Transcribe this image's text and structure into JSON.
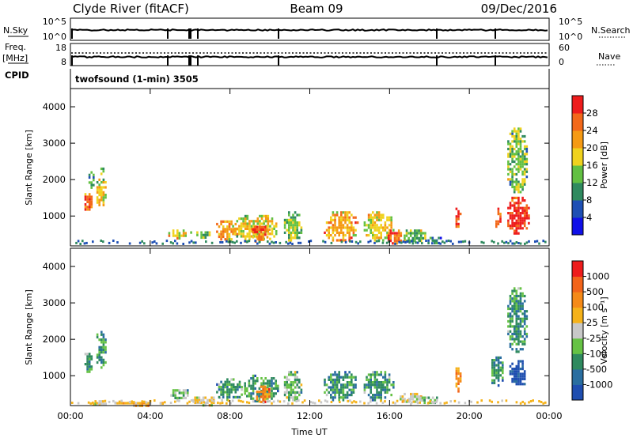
{
  "header": {
    "station": "Clyde River (fitACF)",
    "beam": "Beam 09",
    "date": "09/Dec/2016"
  },
  "panel_labels": {
    "nsky": "N.Sky",
    "nsky_ticks": [
      "10^5",
      "10^0"
    ],
    "nsearch": "N.Search",
    "nsearch_ticks": [
      "10^5",
      "10^0"
    ],
    "freq_line1": "Freq.",
    "freq_line2": "[MHz]",
    "freq_ticks": [
      "18",
      "8"
    ],
    "nave": "Nave",
    "nave_ticks": [
      "60",
      "0"
    ],
    "cpid": "CPID",
    "program": "twofsound (1-min) 3505"
  },
  "chart_data": [
    {
      "type": "heatmap",
      "name": "power",
      "ylabel": "Slant Range [km]",
      "xlabel": "",
      "xlim": [
        0,
        24
      ],
      "ylim": [
        180,
        4500
      ],
      "yticks": [
        "1000",
        "2000",
        "3000",
        "4000"
      ],
      "xticks": [
        "00:00",
        "04:00",
        "08:00",
        "12:00",
        "16:00",
        "20:00",
        "00:00"
      ],
      "colorbar": {
        "label": "Power [dB]",
        "ticks": [
          "4",
          "8",
          "12",
          "16",
          "20",
          "24",
          "28"
        ],
        "colors": [
          "#1010e8",
          "#1e4fb4",
          "#2f8a5f",
          "#62c042",
          "#f0d21e",
          "#f59a14",
          "#f2681a",
          "#ee1c1c"
        ]
      },
      "blobs": [
        {
          "t0": 0.6,
          "t1": 1.1,
          "r0": 1100,
          "r1": 1700,
          "level": 6
        },
        {
          "t0": 0.8,
          "t1": 1.2,
          "r0": 1800,
          "r1": 2300,
          "level": 2
        },
        {
          "t0": 1.2,
          "t1": 1.8,
          "r0": 1200,
          "r1": 2100,
          "level": 4
        },
        {
          "t0": 1.4,
          "t1": 1.7,
          "r0": 2100,
          "r1": 2400,
          "level": 3
        },
        {
          "t0": 4.8,
          "t1": 5.8,
          "r0": 400,
          "r1": 700,
          "level": 4
        },
        {
          "t0": 5.9,
          "t1": 7.0,
          "r0": 400,
          "r1": 650,
          "level": 3
        },
        {
          "t0": 7.2,
          "t1": 8.4,
          "r0": 350,
          "r1": 950,
          "level": 5
        },
        {
          "t0": 8.0,
          "t1": 10.4,
          "r0": 300,
          "r1": 1100,
          "level": 4
        },
        {
          "t0": 9.0,
          "t1": 10.0,
          "r0": 350,
          "r1": 800,
          "level": 6
        },
        {
          "t0": 10.6,
          "t1": 11.6,
          "r0": 300,
          "r1": 1200,
          "level": 3
        },
        {
          "t0": 12.6,
          "t1": 14.4,
          "r0": 300,
          "r1": 1200,
          "level": 5
        },
        {
          "t0": 14.6,
          "t1": 16.2,
          "r0": 300,
          "r1": 1200,
          "level": 4
        },
        {
          "t0": 15.8,
          "t1": 16.6,
          "r0": 250,
          "r1": 700,
          "level": 6
        },
        {
          "t0": 16.6,
          "t1": 17.8,
          "r0": 250,
          "r1": 700,
          "level": 3
        },
        {
          "t0": 17.8,
          "t1": 18.6,
          "r0": 250,
          "r1": 500,
          "level": 2
        },
        {
          "t0": 19.2,
          "t1": 19.6,
          "r0": 700,
          "r1": 1300,
          "level": 7
        },
        {
          "t0": 21.2,
          "t1": 21.6,
          "r0": 700,
          "r1": 1300,
          "level": 6
        },
        {
          "t0": 21.8,
          "t1": 23.0,
          "r0": 500,
          "r1": 1600,
          "level": 7
        },
        {
          "t0": 21.8,
          "t1": 22.9,
          "r0": 1600,
          "r1": 3500,
          "level": 3
        }
      ]
    },
    {
      "type": "heatmap",
      "name": "velocity",
      "ylabel": "Slant Range [km]",
      "xlabel": "Time UT",
      "xlim": [
        0,
        24
      ],
      "ylim": [
        180,
        4500
      ],
      "yticks": [
        "1000",
        "2000",
        "3000",
        "4000"
      ],
      "xticks": [
        "00:00",
        "04:00",
        "08:00",
        "12:00",
        "16:00",
        "20:00",
        "00:00"
      ],
      "colorbar": {
        "label": "Velocity [m s⁻¹]",
        "ticks": [
          "1000",
          "500",
          "100",
          "25",
          "-25",
          "-100",
          "-500",
          "-1000"
        ],
        "colors": [
          "#1f4eb0",
          "#2a6ea0",
          "#2f8a5f",
          "#66c245",
          "#c8c8c8",
          "#f5b21a",
          "#f58a18",
          "#f2641a",
          "#ee1c1c"
        ]
      },
      "blobs": [
        {
          "t0": 0.6,
          "t1": 1.1,
          "r0": 1100,
          "r1": 1700,
          "level": 2
        },
        {
          "t0": 1.2,
          "t1": 1.8,
          "r0": 1200,
          "r1": 2300,
          "level": 2
        },
        {
          "t0": 1.0,
          "t1": 1.8,
          "r0": 200,
          "r1": 400,
          "level": 4
        },
        {
          "t0": 2.0,
          "t1": 4.6,
          "r0": 200,
          "r1": 350,
          "level": 5
        },
        {
          "t0": 4.8,
          "t1": 6.0,
          "r0": 300,
          "r1": 700,
          "level": 3
        },
        {
          "t0": 6.0,
          "t1": 7.6,
          "r0": 200,
          "r1": 500,
          "level": 4
        },
        {
          "t0": 7.2,
          "t1": 8.6,
          "r0": 300,
          "r1": 1000,
          "level": 2
        },
        {
          "t0": 8.6,
          "t1": 10.4,
          "r0": 300,
          "r1": 1100,
          "level": 2
        },
        {
          "t0": 9.2,
          "t1": 10.0,
          "r0": 300,
          "r1": 800,
          "level": 6
        },
        {
          "t0": 10.6,
          "t1": 11.6,
          "r0": 300,
          "r1": 1200,
          "level": 3
        },
        {
          "t0": 12.6,
          "t1": 14.4,
          "r0": 300,
          "r1": 1200,
          "level": 2
        },
        {
          "t0": 14.6,
          "t1": 16.2,
          "r0": 300,
          "r1": 1200,
          "level": 2
        },
        {
          "t0": 16.4,
          "t1": 17.6,
          "r0": 250,
          "r1": 600,
          "level": 4
        },
        {
          "t0": 17.4,
          "t1": 18.4,
          "r0": 250,
          "r1": 500,
          "level": 3
        },
        {
          "t0": 19.2,
          "t1": 19.6,
          "r0": 600,
          "r1": 1300,
          "level": 6
        },
        {
          "t0": 21.0,
          "t1": 21.7,
          "r0": 700,
          "r1": 1600,
          "level": 2
        },
        {
          "t0": 21.9,
          "t1": 22.9,
          "r0": 700,
          "r1": 1500,
          "level": 0
        },
        {
          "t0": 21.8,
          "t1": 22.9,
          "r0": 1600,
          "r1": 3500,
          "level": 2
        }
      ]
    }
  ]
}
